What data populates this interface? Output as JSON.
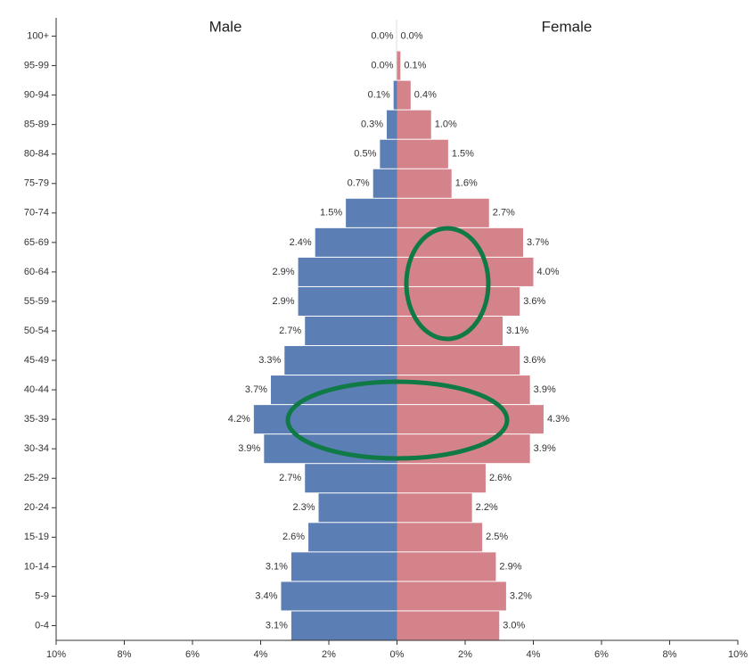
{
  "chart_data": {
    "type": "pyramid",
    "categories": [
      "100+",
      "95-99",
      "90-94",
      "85-89",
      "80-84",
      "75-79",
      "70-74",
      "65-69",
      "60-64",
      "55-59",
      "50-54",
      "45-49",
      "40-44",
      "35-39",
      "30-34",
      "25-29",
      "20-24",
      "15-19",
      "10-14",
      "5-9",
      "0-4"
    ],
    "series": [
      {
        "name": "Male",
        "color": "#5b7fb4",
        "values": [
          0.0,
          0.0,
          0.1,
          0.3,
          0.5,
          0.7,
          1.5,
          2.4,
          2.9,
          2.9,
          2.7,
          3.3,
          3.7,
          4.2,
          3.9,
          2.7,
          2.3,
          2.6,
          3.1,
          3.4,
          3.1
        ],
        "value_labels": [
          "0.0%",
          "0.0%",
          "0.1%",
          "0.3%",
          "0.5%",
          "0.7%",
          "1.5%",
          "2.4%",
          "2.9%",
          "2.9%",
          "2.7%",
          "3.3%",
          "3.7%",
          "4.2%",
          "3.9%",
          "2.7%",
          "2.3%",
          "2.6%",
          "3.1%",
          "3.4%",
          "3.1%"
        ]
      },
      {
        "name": "Female",
        "color": "#d5838a",
        "values": [
          0.0,
          0.1,
          0.4,
          1.0,
          1.5,
          1.6,
          2.7,
          3.7,
          4.0,
          3.6,
          3.1,
          3.6,
          3.9,
          4.3,
          3.9,
          2.6,
          2.2,
          2.5,
          2.9,
          3.2,
          3.0
        ],
        "value_labels": [
          "0.0%",
          "0.1%",
          "0.4%",
          "1.0%",
          "1.5%",
          "1.6%",
          "2.7%",
          "3.7%",
          "4.0%",
          "3.6%",
          "3.1%",
          "3.6%",
          "3.9%",
          "4.3%",
          "3.9%",
          "2.6%",
          "2.2%",
          "2.5%",
          "2.9%",
          "3.2%",
          "3.0%"
        ]
      }
    ],
    "xlim": [
      -10,
      10
    ],
    "xticks": [
      {
        "value": -10,
        "label": "10%"
      },
      {
        "value": -8,
        "label": "8%"
      },
      {
        "value": -6,
        "label": "6%"
      },
      {
        "value": -4,
        "label": "4%"
      },
      {
        "value": -2,
        "label": "2%"
      },
      {
        "value": 0,
        "label": "0%"
      },
      {
        "value": 2,
        "label": "2%"
      },
      {
        "value": 4,
        "label": "4%"
      },
      {
        "value": 6,
        "label": "6%"
      },
      {
        "value": 8,
        "label": "8%"
      },
      {
        "value": 10,
        "label": "10%"
      }
    ]
  }
}
